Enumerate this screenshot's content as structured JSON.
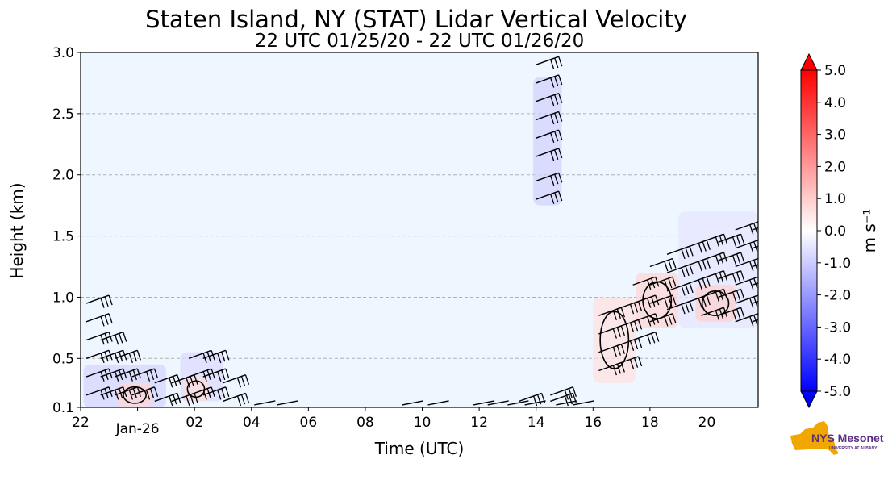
{
  "chart_data": {
    "type": "heatmap",
    "title": "Staten Island, NY (STAT) Lidar Vertical Velocity",
    "subtitle": "22 UTC 01/25/20 - 22 UTC 01/26/20",
    "xlabel": "Time (UTC)",
    "ylabel": "Height (km)",
    "xlim": [
      22,
      45.8
    ],
    "ylim": [
      0.1,
      3.0
    ],
    "x_ticks": [
      {
        "value": 22,
        "label": "22"
      },
      {
        "value": 26,
        "label": "02"
      },
      {
        "value": 28,
        "label": "04"
      },
      {
        "value": 30,
        "label": "06"
      },
      {
        "value": 32,
        "label": "08"
      },
      {
        "value": 34,
        "label": "10"
      },
      {
        "value": 36,
        "label": "12"
      },
      {
        "value": 38,
        "label": "14"
      },
      {
        "value": 40,
        "label": "16"
      },
      {
        "value": 42,
        "label": "18"
      },
      {
        "value": 44,
        "label": "20"
      }
    ],
    "x_date_label": {
      "value": 24,
      "label": "Jan-26"
    },
    "y_ticks": [
      {
        "value": 0.1,
        "label": "0.1"
      },
      {
        "value": 0.5,
        "label": "0.5"
      },
      {
        "value": 1.0,
        "label": "1.0"
      },
      {
        "value": 1.5,
        "label": "1.5"
      },
      {
        "value": 2.0,
        "label": "2.0"
      },
      {
        "value": 2.5,
        "label": "2.5"
      },
      {
        "value": 3.0,
        "label": "3.0"
      }
    ],
    "grid": "horizontal dashed",
    "background_color": "#eef6ff",
    "colorbar": {
      "label": "m s⁻¹",
      "min": -5.0,
      "max": 5.0,
      "ticks": [
        "5.0",
        "4.0",
        "3.0",
        "2.0",
        "1.0",
        "0.0",
        "-1.0",
        "-2.0",
        "-3.0",
        "-4.0",
        "-5.0"
      ],
      "tick_values": [
        5,
        4,
        3,
        2,
        1,
        0,
        -1,
        -2,
        -3,
        -4,
        -5
      ],
      "colormap": "bwr",
      "extend": "both"
    },
    "velocity_regions": [
      {
        "x": [
          22.1,
          25.0
        ],
        "y": [
          0.1,
          0.45
        ],
        "value": -0.8
      },
      {
        "x": [
          23.3,
          24.5
        ],
        "y": [
          0.1,
          0.3
        ],
        "value": 0.8
      },
      {
        "x": [
          25.5,
          27.0
        ],
        "y": [
          0.15,
          0.55
        ],
        "value": -0.7
      },
      {
        "x": [
          25.6,
          26.5
        ],
        "y": [
          0.15,
          0.35
        ],
        "value": 0.7
      },
      {
        "x": [
          37.9,
          38.9
        ],
        "y": [
          1.75,
          2.8
        ],
        "value": -0.9
      },
      {
        "x": [
          40.0,
          41.5
        ],
        "y": [
          0.3,
          1.0
        ],
        "value": 0.6
      },
      {
        "x": [
          41.5,
          43.0
        ],
        "y": [
          0.75,
          1.2
        ],
        "value": 0.8
      },
      {
        "x": [
          43.0,
          45.8
        ],
        "y": [
          0.75,
          1.7
        ],
        "value": -0.5
      },
      {
        "x": [
          43.6,
          45.0
        ],
        "y": [
          0.8,
          1.1
        ],
        "value": 0.9
      }
    ],
    "wind_barb_columns": [
      {
        "x": 22.2,
        "heights": [
          0.2,
          0.35,
          0.5,
          0.65,
          0.8,
          0.95
        ]
      },
      {
        "x": 22.7,
        "heights": [
          0.2,
          0.35,
          0.5,
          0.65
        ]
      },
      {
        "x": 23.2,
        "heights": [
          0.2,
          0.35,
          0.5
        ]
      },
      {
        "x": 23.8,
        "heights": [
          0.2,
          0.35
        ]
      },
      {
        "x": 24.6,
        "heights": [
          0.15,
          0.3
        ]
      },
      {
        "x": 25.2,
        "heights": [
          0.15,
          0.3
        ]
      },
      {
        "x": 25.8,
        "heights": [
          0.2,
          0.35,
          0.5
        ]
      },
      {
        "x": 26.3,
        "heights": [
          0.2,
          0.35,
          0.5
        ]
      },
      {
        "x": 27.0,
        "heights": [
          0.15,
          0.3
        ]
      },
      {
        "x": 37.4,
        "heights": [
          0.15
        ]
      },
      {
        "x": 38.0,
        "heights": [
          1.8,
          1.95,
          2.15,
          2.3,
          2.45,
          2.6,
          2.75,
          2.9
        ]
      },
      {
        "x": 38.5,
        "heights": [
          0.15,
          0.2
        ]
      },
      {
        "x": 40.2,
        "heights": [
          0.4,
          0.55,
          0.7,
          0.85
        ]
      },
      {
        "x": 40.8,
        "heights": [
          0.45,
          0.6,
          0.75,
          0.9
        ]
      },
      {
        "x": 41.4,
        "heights": [
          0.65,
          0.8,
          0.95,
          1.1
        ]
      },
      {
        "x": 42.0,
        "heights": [
          0.8,
          0.95,
          1.1,
          1.25
        ]
      },
      {
        "x": 42.6,
        "heights": [
          0.9,
          1.05,
          1.2,
          1.35
        ]
      },
      {
        "x": 43.2,
        "heights": [
          0.95,
          1.1,
          1.25,
          1.4
        ]
      },
      {
        "x": 43.8,
        "heights": [
          0.85,
          1.0,
          1.15,
          1.3,
          1.45
        ]
      },
      {
        "x": 44.4,
        "heights": [
          0.85,
          1.0,
          1.15,
          1.3,
          1.45
        ]
      },
      {
        "x": 45.0,
        "heights": [
          0.8,
          0.95,
          1.1,
          1.25,
          1.4,
          1.55
        ]
      },
      {
        "x": 45.6,
        "heights": [
          0.8,
          0.95,
          1.1,
          1.25,
          1.4,
          1.55
        ]
      }
    ],
    "surface_barbs": [
      28.1,
      28.9,
      33.3,
      34.2,
      35.8,
      36.3,
      37.0,
      37.6,
      38.7,
      39.3
    ]
  },
  "logo": {
    "text": "NYS Mesonet",
    "subtext": "UNIVERSITY AT ALBANY",
    "state_color": "#f0a800",
    "text_color": "#5a2d82"
  }
}
